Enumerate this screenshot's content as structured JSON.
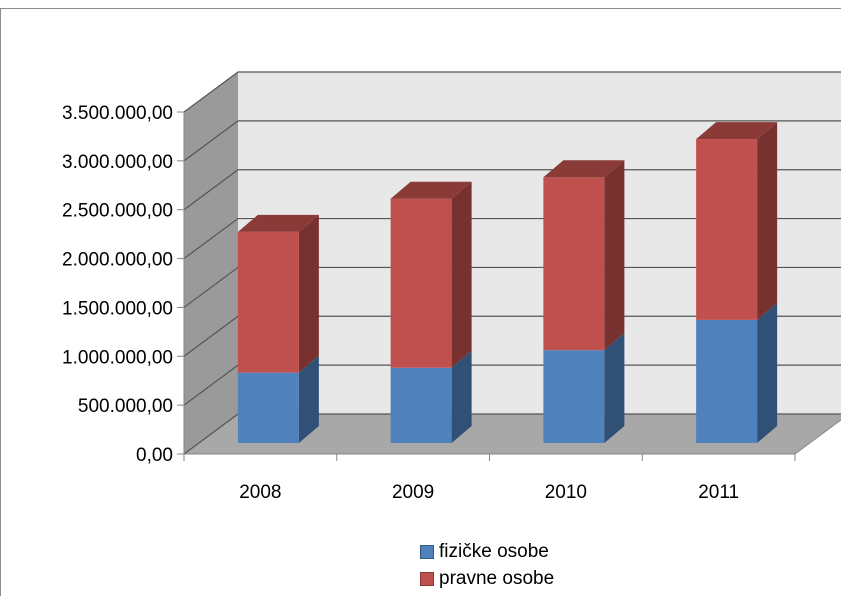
{
  "chart_data": {
    "type": "bar",
    "stacked": true,
    "three_d": true,
    "categories": [
      "2008",
      "2009",
      "2010",
      "2011"
    ],
    "y_ticks": [
      "0,00",
      "500.000,00",
      "1.000.000,00",
      "1.500.000,00",
      "2.000.000,00",
      "2.500.000,00",
      "3.000.000,00",
      "3.500.000,00"
    ],
    "ylim": [
      0,
      3500000
    ],
    "grid": true,
    "legend_position": "bottom",
    "series": [
      {
        "name": "fizičke osobe",
        "color": "#4f81bd",
        "values": [
          720000,
          770000,
          950000,
          1260000
        ]
      },
      {
        "name": "pravne osobe",
        "color": "#c0504d",
        "values": [
          1440000,
          1730000,
          1770000,
          1850000
        ]
      }
    ]
  }
}
